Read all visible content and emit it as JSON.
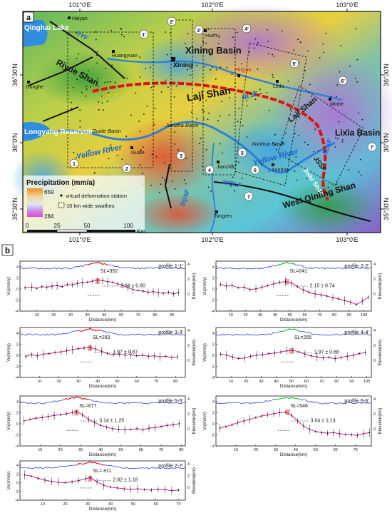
{
  "panel_a": {
    "label": "a",
    "lon_ticks": [
      "101°0'E",
      "102°0'E",
      "103°0'E"
    ],
    "lat_ticks": [
      "36°30'N",
      "36°0'N",
      "35°30'N"
    ],
    "places": {
      "haiyan": "Haiyan",
      "qinghai_lake": "Qinghai Lake",
      "huangyuan": "Huangyuan",
      "huzhu": "Huzhu",
      "xining": "Xining",
      "xining_basin": "Xining Basin",
      "ping_an": "Ping'an",
      "ledu": "Ledu",
      "minhe": "Minhe",
      "gonghe": "Gonghe",
      "longyang": "Longyang Reservoir",
      "guide_basin": "Guide Basin",
      "guide": "Guide",
      "jianzha_basin": "Jianzha Basin",
      "jianzha": "Jianzha",
      "xunhua_basin": "Xunhua Basin",
      "xunhua": "Xunhua",
      "lixia_basin": "Lixia Basin",
      "tongren": "Tongren",
      "riyue_shan": "Riyue Shan",
      "laji_shan": "Laji Shan",
      "laji_shan2": "Laji Shan",
      "jishi_shan": "Jishi Shan",
      "west_qinling": "West Qinling Shan",
      "yellow_river": "Yellow River",
      "yellow_river2": "Yellow River"
    },
    "faults": {
      "ryf": "RYF",
      "nlsf": "NLSF",
      "slsf": "SLSF",
      "wqlf": "WQLF",
      "jssf": "JSSF",
      "sqsf": "SQSF"
    },
    "profile_ends": [
      "1",
      "1'",
      "2",
      "2'",
      "3",
      "3'",
      "4",
      "4'",
      "5",
      "5'",
      "6",
      "6'",
      "7",
      "7'"
    ],
    "legend": {
      "title": "Precipitation (mm/a)",
      "max": "659",
      "min": "284",
      "station": "virtual deformation station",
      "swath": "10 km wide swathes"
    },
    "scalebar": [
      "0",
      "25",
      "50",
      "100"
    ],
    "scale_unit": "Km",
    "colors": {
      "river": "#2f7fd8",
      "fault": "#111111",
      "red_fault": "#e01010"
    }
  },
  "panel_b": {
    "label": "b",
    "y_label": "Vu(mm/y)",
    "right_label": "Elevation(km)",
    "x_label": "Distance(km)",
    "chart_data": [
      {
        "type": "scatter",
        "title": "profile 1-1'",
        "sl": "SL=352",
        "rate": "2.64 ± 0.80",
        "xticks": [
          "10",
          "20",
          "30",
          "40",
          "50",
          "60",
          "70",
          "80",
          "90"
        ],
        "xlim": [
          0,
          98
        ],
        "ylim": [
          -4,
          5
        ],
        "yticks": [
          "4",
          "2",
          "0",
          "-2",
          "-4"
        ],
        "elev_ticks": [
          "4",
          "2",
          "0"
        ],
        "peak": 46,
        "points": [
          [
            3,
            0.2
          ],
          [
            7,
            0.3
          ],
          [
            10,
            0.1
          ],
          [
            13,
            0.4
          ],
          [
            16,
            0.3
          ],
          [
            19,
            0.5
          ],
          [
            22,
            0.6
          ],
          [
            25,
            0.4
          ],
          [
            28,
            0.8
          ],
          [
            31,
            0.7
          ],
          [
            34,
            1.0
          ],
          [
            37,
            1.1
          ],
          [
            40,
            1.2
          ],
          [
            43,
            1.4
          ],
          [
            46,
            1.6
          ],
          [
            49,
            1.5
          ],
          [
            52,
            1.3
          ],
          [
            55,
            1.2
          ],
          [
            58,
            0.9
          ],
          [
            61,
            0.6
          ],
          [
            64,
            0.2
          ],
          [
            67,
            -0.1
          ],
          [
            70,
            -0.3
          ],
          [
            73,
            -0.4
          ],
          [
            76,
            -0.6
          ],
          [
            79,
            -0.5
          ],
          [
            82,
            -0.7
          ],
          [
            85,
            -0.8
          ],
          [
            88,
            -0.6
          ],
          [
            91,
            -0.9
          ],
          [
            94,
            -0.7
          ]
        ]
      },
      {
        "type": "scatter",
        "title": "profile 2-2'",
        "sl": "SL=241",
        "rate": "2.15 ± 0.74",
        "xticks": [
          "10",
          "20",
          "30",
          "40",
          "50",
          "60",
          "70",
          "80",
          "90",
          "100"
        ],
        "xlim": [
          0,
          105
        ],
        "ylim": [
          -4,
          5
        ],
        "yticks": [
          "4",
          "2",
          "0",
          "-2",
          "-4"
        ],
        "elev_ticks": [
          "4",
          "2",
          "0"
        ],
        "peak": 48,
        "points": [
          [
            3,
            0.8
          ],
          [
            7,
            0.5
          ],
          [
            11,
            0.6
          ],
          [
            15,
            0.2
          ],
          [
            19,
            0.3
          ],
          [
            23,
            -0.1
          ],
          [
            27,
            0.0
          ],
          [
            31,
            0.3
          ],
          [
            35,
            0.6
          ],
          [
            39,
            0.9
          ],
          [
            43,
            1.2
          ],
          [
            47,
            1.3
          ],
          [
            51,
            1.1
          ],
          [
            55,
            0.4
          ],
          [
            59,
            -0.2
          ],
          [
            63,
            -0.6
          ],
          [
            67,
            -0.9
          ],
          [
            71,
            -1.1
          ],
          [
            75,
            -1.3
          ],
          [
            79,
            -1.6
          ],
          [
            83,
            -1.8
          ],
          [
            87,
            -2.1
          ],
          [
            91,
            -2.4
          ],
          [
            95,
            -2.8
          ],
          [
            99,
            -2.2
          ],
          [
            103,
            -1.5
          ]
        ]
      },
      {
        "type": "scatter",
        "title": "profile 3-3'",
        "sl": "SL=293",
        "rate": "1.97 ± 0.87",
        "xticks": [
          "10",
          "20",
          "30",
          "40",
          "50",
          "60",
          "70",
          "80"
        ],
        "xlim": [
          0,
          85
        ],
        "ylim": [
          -4,
          5
        ],
        "yticks": [
          "4",
          "2",
          "0",
          "-2",
          "-4"
        ],
        "elev_ticks": [
          "4",
          "2",
          "0"
        ],
        "peak": 36,
        "points": [
          [
            3,
            -0.2
          ],
          [
            6,
            0.1
          ],
          [
            9,
            -0.1
          ],
          [
            12,
            0.2
          ],
          [
            15,
            0.3
          ],
          [
            18,
            0.5
          ],
          [
            21,
            0.6
          ],
          [
            24,
            0.8
          ],
          [
            27,
            1.0
          ],
          [
            30,
            1.2
          ],
          [
            33,
            1.3
          ],
          [
            36,
            1.4
          ],
          [
            39,
            1.1
          ],
          [
            42,
            0.7
          ],
          [
            45,
            0.3
          ],
          [
            48,
            0.1
          ],
          [
            51,
            0.2
          ],
          [
            54,
            0.0
          ],
          [
            57,
            0.1
          ],
          [
            60,
            -0.1
          ],
          [
            63,
            0.0
          ],
          [
            66,
            -0.2
          ],
          [
            69,
            -0.1
          ],
          [
            72,
            -0.3
          ],
          [
            75,
            -0.2
          ],
          [
            78,
            -0.4
          ],
          [
            81,
            -0.3
          ]
        ]
      },
      {
        "type": "scatter",
        "title": "profile 4-4'",
        "sl": "SL=255",
        "rate": "1.97 ± 0.68",
        "xticks": [
          "10",
          "20",
          "30",
          "40",
          "50",
          "60",
          "70",
          "80",
          "90",
          "100"
        ],
        "xlim": [
          0,
          103
        ],
        "ylim": [
          -4,
          5
        ],
        "yticks": [
          "4",
          "2",
          "0",
          "-2",
          "-4"
        ],
        "elev_ticks": [
          "4",
          "2",
          "0"
        ],
        "peak": 50,
        "points": [
          [
            3,
            0.2
          ],
          [
            7,
            0.0
          ],
          [
            11,
            -0.3
          ],
          [
            15,
            -0.6
          ],
          [
            19,
            -0.5
          ],
          [
            23,
            -0.2
          ],
          [
            27,
            0.0
          ],
          [
            31,
            0.1
          ],
          [
            35,
            0.3
          ],
          [
            39,
            0.4
          ],
          [
            43,
            0.6
          ],
          [
            47,
            0.8
          ],
          [
            51,
            0.9
          ],
          [
            55,
            0.6
          ],
          [
            59,
            0.2
          ],
          [
            63,
            -0.1
          ],
          [
            67,
            -0.3
          ],
          [
            71,
            -0.5
          ],
          [
            75,
            -0.4
          ],
          [
            79,
            -0.6
          ],
          [
            83,
            -0.4
          ],
          [
            87,
            -0.2
          ],
          [
            91,
            0.0
          ],
          [
            95,
            0.3
          ],
          [
            99,
            0.5
          ]
        ]
      },
      {
        "type": "scatter",
        "title": "profile 5-5'",
        "sl": "SL=677",
        "rate": "3.14 ± 1.25",
        "xticks": [
          "10",
          "20",
          "30",
          "40",
          "50",
          "60",
          "70",
          "80"
        ],
        "xlim": [
          0,
          82
        ],
        "ylim": [
          -4,
          5
        ],
        "yticks": [
          "4",
          "2",
          "0",
          "-2",
          "-4"
        ],
        "elev_ticks": [
          "4",
          "2",
          "0"
        ],
        "peak": 28,
        "points": [
          [
            2,
            0.5
          ],
          [
            5,
            0.8
          ],
          [
            8,
            1.0
          ],
          [
            11,
            1.1
          ],
          [
            14,
            1.3
          ],
          [
            17,
            1.5
          ],
          [
            20,
            1.6
          ],
          [
            23,
            1.8
          ],
          [
            26,
            2.0
          ],
          [
            28,
            2.2
          ],
          [
            31,
            1.6
          ],
          [
            34,
            0.8
          ],
          [
            37,
            0.2
          ],
          [
            40,
            -0.3
          ],
          [
            43,
            -0.6
          ],
          [
            46,
            -0.9
          ],
          [
            49,
            -1.0
          ],
          [
            52,
            -1.1
          ],
          [
            55,
            -1.0
          ],
          [
            58,
            -0.9
          ],
          [
            61,
            -1.1
          ],
          [
            64,
            -0.8
          ],
          [
            67,
            -0.7
          ],
          [
            70,
            -0.5
          ],
          [
            73,
            -0.3
          ],
          [
            76,
            -0.2
          ],
          [
            79,
            0.0
          ]
        ]
      },
      {
        "type": "scatter",
        "title": "profile 6-6'",
        "sl": "SL=546",
        "rate": "3.04 ± 1.13",
        "xticks": [
          "10",
          "20",
          "30",
          "40",
          "50",
          "60",
          "70"
        ],
        "xlim": [
          0,
          78
        ],
        "ylim": [
          -4,
          5
        ],
        "yticks": [
          "4",
          "2",
          "0",
          "-2",
          "-4"
        ],
        "elev_ticks": [
          "4",
          "2",
          "0"
        ],
        "peak": 36,
        "points": [
          [
            2,
            -0.8
          ],
          [
            5,
            -0.5
          ],
          [
            8,
            -0.2
          ],
          [
            11,
            0.2
          ],
          [
            14,
            0.5
          ],
          [
            17,
            0.8
          ],
          [
            20,
            1.1
          ],
          [
            23,
            1.4
          ],
          [
            26,
            1.6
          ],
          [
            29,
            1.8
          ],
          [
            32,
            2.0
          ],
          [
            35,
            2.1
          ],
          [
            38,
            1.5
          ],
          [
            41,
            0.5
          ],
          [
            44,
            -0.4
          ],
          [
            47,
            -1.0
          ],
          [
            50,
            -1.4
          ],
          [
            53,
            -1.6
          ],
          [
            56,
            -1.7
          ],
          [
            59,
            -1.6
          ],
          [
            62,
            -1.8
          ],
          [
            65,
            -1.9
          ],
          [
            68,
            -2.0
          ],
          [
            71,
            -2.1
          ],
          [
            74,
            -1.8
          ],
          [
            77,
            -1.6
          ]
        ]
      },
      {
        "type": "scatter",
        "title": "profile 7-7'",
        "sl": "SL= 811",
        "rate": "2.82 ± 1.18",
        "xticks": [
          "10",
          "20",
          "30",
          "40",
          "50",
          "60",
          "70"
        ],
        "xlim": [
          0,
          73
        ],
        "ylim": [
          -4,
          5
        ],
        "yticks": [
          "4",
          "2",
          "0",
          "-2",
          "-4"
        ],
        "elev_ticks": [
          "4",
          "2",
          "0"
        ],
        "peak": 31,
        "points": [
          [
            2,
            1.8
          ],
          [
            5,
            1.5
          ],
          [
            8,
            1.0
          ],
          [
            11,
            0.6
          ],
          [
            14,
            0.3
          ],
          [
            17,
            0.1
          ],
          [
            20,
            0.0
          ],
          [
            23,
            0.2
          ],
          [
            26,
            0.5
          ],
          [
            29,
            0.9
          ],
          [
            31,
            1.2
          ],
          [
            34,
            0.2
          ],
          [
            37,
            -0.6
          ],
          [
            40,
            -1.0
          ],
          [
            43,
            -1.2
          ],
          [
            46,
            -1.4
          ],
          [
            49,
            -1.5
          ],
          [
            52,
            -1.4
          ],
          [
            55,
            -1.6
          ],
          [
            58,
            -1.7
          ],
          [
            61,
            -1.5
          ],
          [
            64,
            -1.6
          ],
          [
            67,
            -1.8
          ],
          [
            70,
            -1.7
          ]
        ]
      }
    ]
  }
}
